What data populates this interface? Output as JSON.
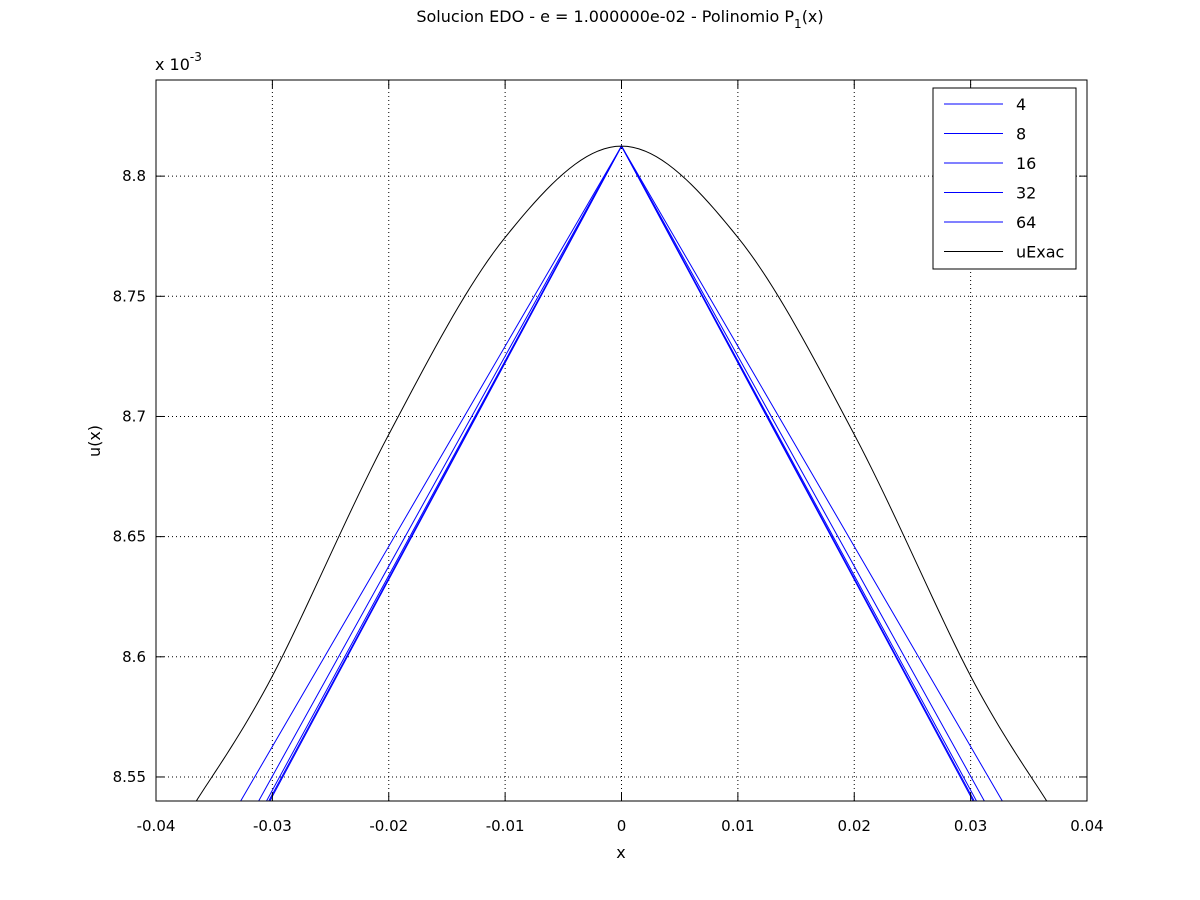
{
  "chart_data": {
    "type": "line",
    "title": "Solucion EDO - e = 1.000000e-02 - Polinomio P",
    "title_subscript": "1",
    "title_suffix": "(x)",
    "xlabel": "x",
    "ylabel": "u(x)",
    "y_exponent_label": "x 10",
    "y_exponent_power": "-3",
    "xlim": [
      -0.04,
      0.04
    ],
    "ylim": [
      8.54,
      8.84
    ],
    "y_scale_factor": 0.001,
    "xticks": [
      -0.04,
      -0.03,
      -0.02,
      -0.01,
      0,
      0.01,
      0.02,
      0.03,
      0.04
    ],
    "xtick_labels": [
      "-0.04",
      "-0.03",
      "-0.02",
      "-0.01",
      "0",
      "0.01",
      "0.02",
      "0.03",
      "0.04"
    ],
    "yticks": [
      8.55,
      8.6,
      8.65,
      8.7,
      8.75,
      8.8
    ],
    "ytick_labels": [
      "8.55",
      "8.6",
      "8.65",
      "8.7",
      "8.75",
      "8.8"
    ],
    "grid": true,
    "legend_position": "top-right",
    "series": [
      {
        "name": "4",
        "color": "#0000ff",
        "kind": "piecewise_linear",
        "x": [
          -0.0339,
          0,
          0.0339
        ],
        "y": [
          8.5302,
          8.8125,
          8.5302
        ]
      },
      {
        "name": "8",
        "color": "#0000ff",
        "kind": "piecewise_linear",
        "x": [
          -0.0323,
          0,
          0.0323
        ],
        "y": [
          8.5302,
          8.8125,
          8.5302
        ]
      },
      {
        "name": "16",
        "color": "#0000ff",
        "kind": "piecewise_linear",
        "x": [
          -0.0316,
          0,
          0.0316
        ],
        "y": [
          8.5302,
          8.8125,
          8.5302
        ]
      },
      {
        "name": "32",
        "color": "#0000ff",
        "kind": "piecewise_linear",
        "x": [
          -0.0314,
          0,
          0.0314
        ],
        "y": [
          8.5302,
          8.8125,
          8.5302
        ]
      },
      {
        "name": "64",
        "color": "#0000ff",
        "kind": "piecewise_linear",
        "x": [
          -0.0313,
          0,
          0.0313
        ],
        "y": [
          8.5302,
          8.8125,
          8.5302
        ]
      },
      {
        "name": "uExac",
        "color": "#000000",
        "kind": "smooth",
        "x": [
          -0.0366,
          -0.03,
          -0.02,
          -0.01,
          0,
          0.01,
          0.02,
          0.03,
          0.0366
        ],
        "y": [
          8.5395,
          8.592,
          8.6925,
          8.7745,
          8.8125,
          8.7745,
          8.6925,
          8.592,
          8.5395
        ]
      }
    ]
  }
}
